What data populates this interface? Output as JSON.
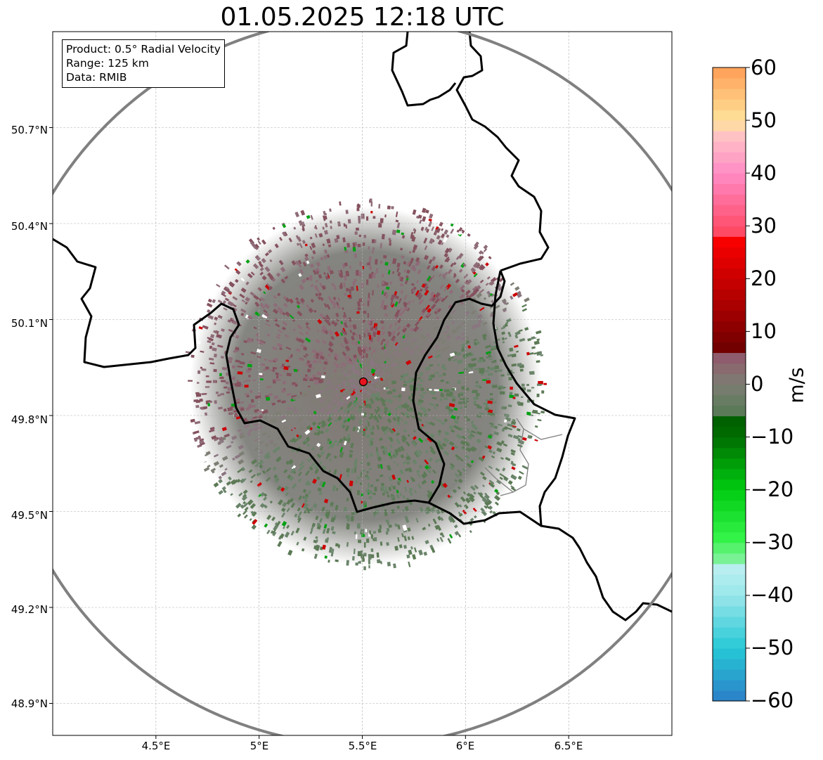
{
  "title": "01.05.2025 12:18 UTC",
  "info": {
    "product": "Product: 0.5° Radial Velocity",
    "range": "Range: 125 km",
    "source": "Data: RMIB"
  },
  "axes": {
    "lat_labels": [
      "50.7°N",
      "50.4°N",
      "50.1°N",
      "49.8°N",
      "49.5°N",
      "49.2°N",
      "48.9°N"
    ],
    "lon_labels": [
      "4.5°E",
      "5°E",
      "5.5°E",
      "6°E",
      "6.5°E"
    ]
  },
  "map": {
    "lon_ticks": [
      4.5,
      5.0,
      5.5,
      6.0,
      6.5
    ],
    "lat_ticks": [
      50.7,
      50.4,
      50.1,
      49.8,
      49.5,
      49.2,
      48.9
    ],
    "extent_lon": [
      4.0,
      7.0
    ],
    "extent_lat": [
      48.8,
      51.0
    ],
    "radar_site": {
      "lon": 5.5,
      "lat": 49.915
    },
    "range_ring": "125 km",
    "ring_color": "#808080",
    "site_color": "#e8141e",
    "border_color": "#000000"
  },
  "colorbar": {
    "label": "m/s",
    "min": -60,
    "max": 60,
    "tick_labels": [
      "60",
      "50",
      "40",
      "30",
      "20",
      "10",
      "0",
      "−10",
      "−20",
      "−30",
      "−40",
      "−50",
      "−60"
    ],
    "stops": [
      {
        "v": -60,
        "c": "#2b7fc8"
      },
      {
        "v": -50,
        "c": "#27c8d6"
      },
      {
        "v": -40,
        "c": "#99e6ea"
      },
      {
        "v": -35,
        "c": "#b9eef0"
      },
      {
        "v": -34,
        "c": "#8af2a8"
      },
      {
        "v": -29,
        "c": "#33f248"
      },
      {
        "v": -20,
        "c": "#00cc11"
      },
      {
        "v": -10,
        "c": "#006e00"
      },
      {
        "v": -6,
        "c": "#005c00"
      },
      {
        "v": -5,
        "c": "#5a7a58"
      },
      {
        "v": 0,
        "c": "#7e7e74"
      },
      {
        "v": 5,
        "c": "#8e5c6c"
      },
      {
        "v": 6,
        "c": "#6b0000"
      },
      {
        "v": 15,
        "c": "#aa0000"
      },
      {
        "v": 28,
        "c": "#ff0000"
      },
      {
        "v": 29,
        "c": "#ff4a66"
      },
      {
        "v": 40,
        "c": "#ff8bc6"
      },
      {
        "v": 47,
        "c": "#ffc2c4"
      },
      {
        "v": 50,
        "c": "#ffe39a"
      },
      {
        "v": 60,
        "c": "#ff9d55"
      }
    ]
  }
}
